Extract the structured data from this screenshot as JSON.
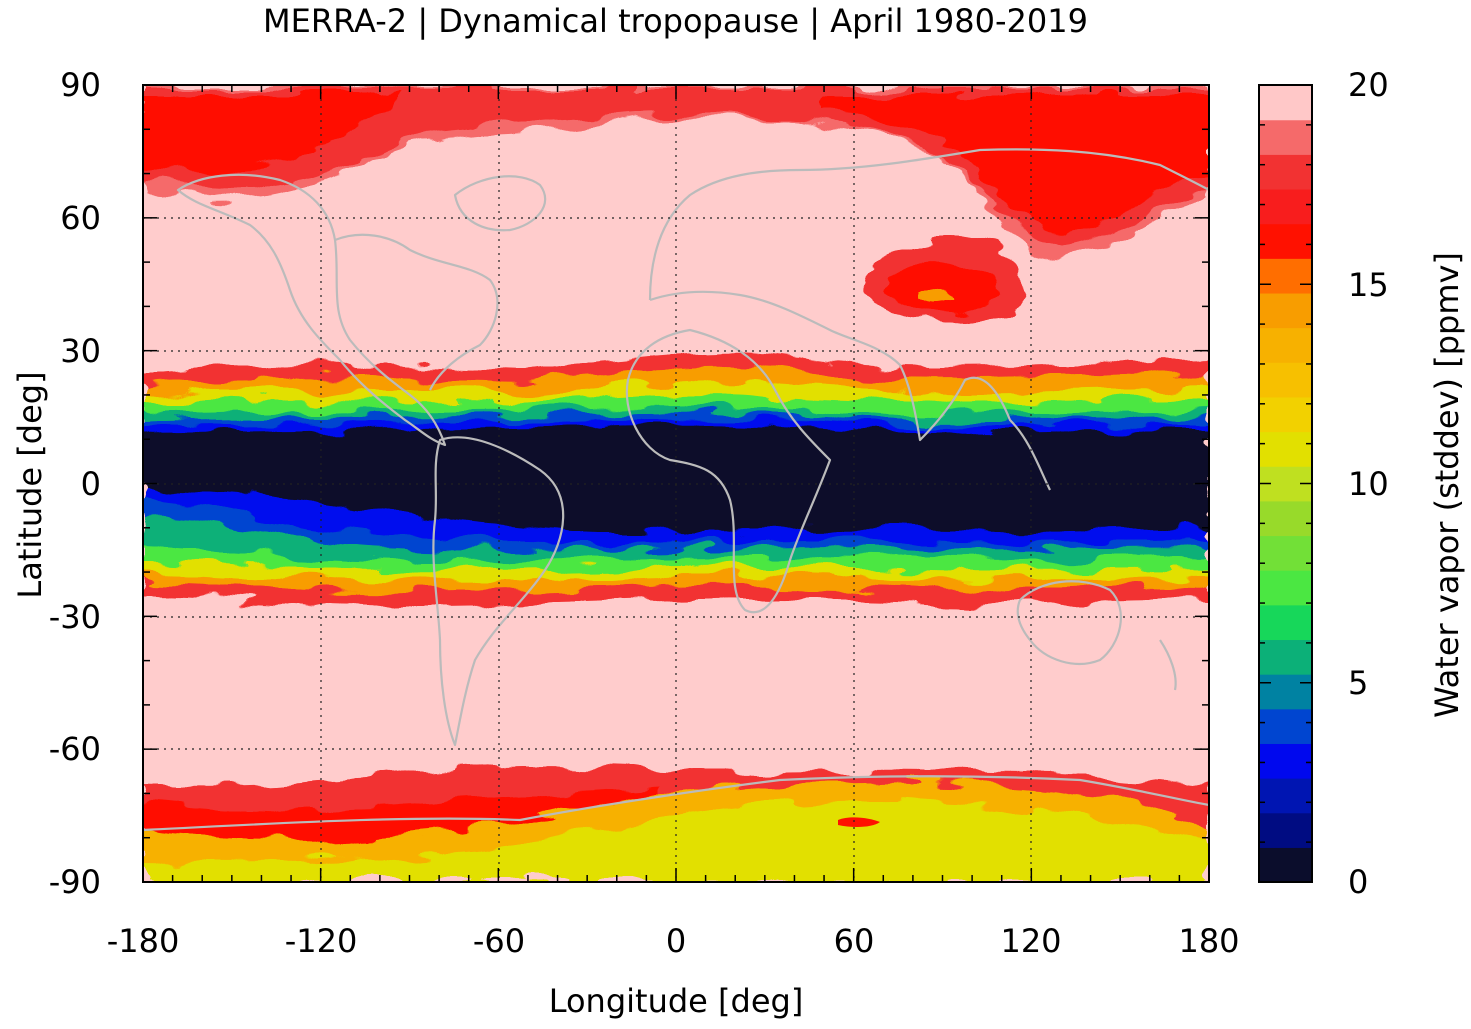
{
  "title": "MERRA-2 | Dynamical tropopause | April 1980-2019",
  "xlabel": "Longitude [deg]",
  "ylabel": "Latitude [deg]",
  "colorbar": {
    "label": "Water vapor (stddev) [ppmv]",
    "range": [
      0,
      20
    ],
    "ticks": [
      "0",
      "5",
      "10",
      "15",
      "20"
    ],
    "colors": [
      "#0b0d2c",
      "#000c82",
      "#0015b2",
      "#0008ee",
      "#0045d0",
      "#0082a2",
      "#0cb078",
      "#17d75a",
      "#4be742",
      "#72e037",
      "#98da2a",
      "#bfe020",
      "#e2e000",
      "#f2d100",
      "#f7c000",
      "#f7b100",
      "#f89d00",
      "#ff6e00",
      "#ff1100",
      "#f81d1d",
      "#f23232",
      "#f56a6a",
      "#ffc8c8"
    ]
  },
  "x_axis": {
    "range": [
      -180,
      180
    ],
    "ticks": [
      "-180",
      "-120",
      "-60",
      "0",
      "60",
      "120",
      "180"
    ]
  },
  "y_axis": {
    "range": [
      -90,
      90
    ],
    "ticks": [
      "-90",
      "-60",
      "-30",
      "0",
      "30",
      "60",
      "90"
    ]
  },
  "background_color": "#ffcccc",
  "coastline_color": "#bbbbbb"
}
